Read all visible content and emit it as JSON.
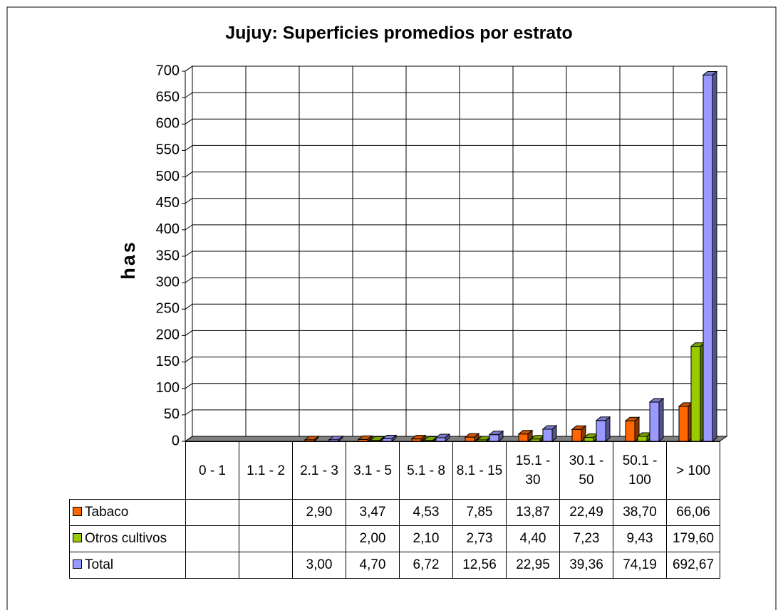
{
  "chart_data": {
    "type": "bar3d",
    "title": "Jujuy: Superficies promedios por estrato",
    "y_label": "has",
    "categories": [
      "0 - 1",
      "1.1 - 2",
      "2.1 - 3",
      "3.1 - 5",
      "5.1 - 8",
      "8.1 - 15",
      "15.1 - 30",
      "30.1 - 50",
      "50.1 - 100",
      "> 100"
    ],
    "series": [
      {
        "name": "Tabaco",
        "color": "#ff6600",
        "values": [
          null,
          null,
          2.9,
          3.47,
          4.53,
          7.85,
          13.87,
          22.49,
          38.7,
          66.06
        ],
        "value_labels": [
          null,
          null,
          "2,90",
          "3,47",
          "4,53",
          "7,85",
          "13,87",
          "22,49",
          "38,70",
          "66,06"
        ]
      },
      {
        "name": "Otros cultivos",
        "color": "#99cc00",
        "values": [
          null,
          null,
          null,
          2.0,
          2.1,
          2.73,
          4.4,
          7.23,
          9.43,
          179.6
        ],
        "value_labels": [
          null,
          null,
          null,
          "2,00",
          "2,10",
          "2,73",
          "4,40",
          "7,23",
          "9,43",
          "179,60"
        ]
      },
      {
        "name": "Total",
        "color": "#9999ff",
        "values": [
          null,
          null,
          3.0,
          4.7,
          6.72,
          12.56,
          22.95,
          39.36,
          74.19,
          692.67
        ],
        "value_labels": [
          null,
          null,
          "3,00",
          "4,70",
          "6,72",
          "12,56",
          "22,95",
          "39,36",
          "74,19",
          "692,67"
        ]
      }
    ],
    "ylim": [
      0,
      700
    ],
    "yticks": [
      0,
      50,
      100,
      150,
      200,
      250,
      300,
      350,
      400,
      450,
      500,
      550,
      600,
      650,
      700
    ],
    "grid": true,
    "data_table": true
  }
}
